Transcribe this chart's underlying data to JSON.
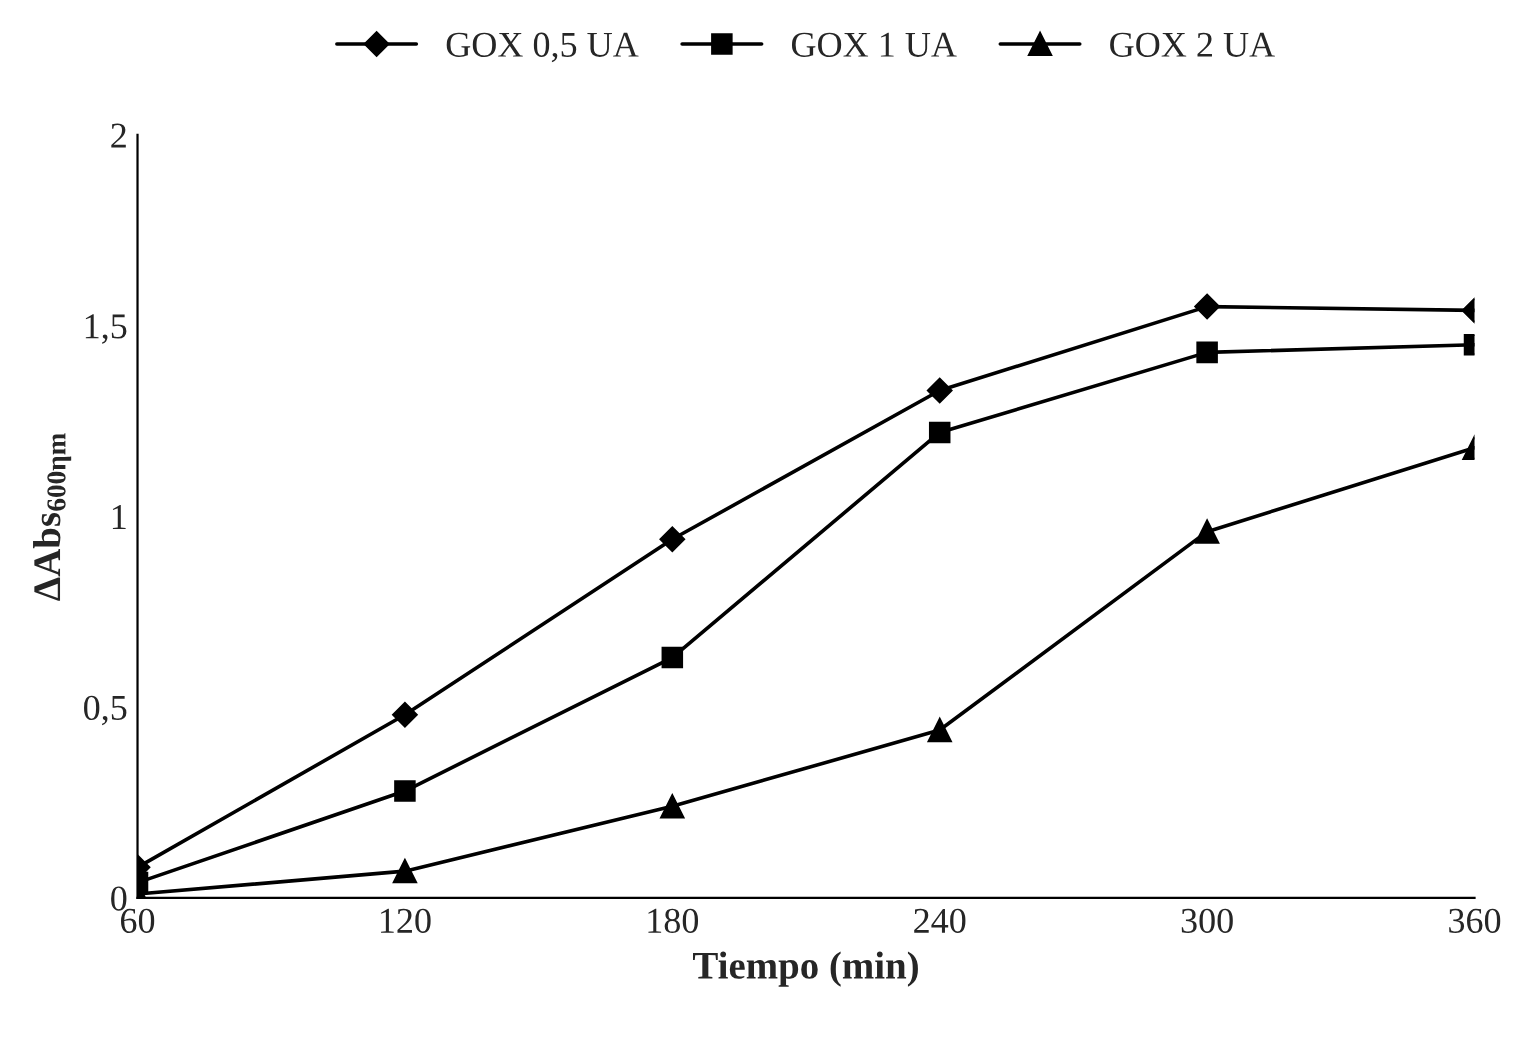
{
  "chart_data": {
    "type": "line",
    "xlabel": "Tiempo (min)",
    "ylabel": "ΔAbs$_{600ηm}$",
    "x": [
      60,
      120,
      180,
      240,
      300,
      360
    ],
    "series": [
      {
        "name": "GOX 0,5 UA",
        "color": "#000000",
        "marker": "diamond",
        "values": [
          0.08,
          0.48,
          0.94,
          1.33,
          1.55,
          1.54
        ]
      },
      {
        "name": "GOX 1 UA",
        "color": "#000000",
        "marker": "square",
        "values": [
          0.04,
          0.28,
          0.63,
          1.22,
          1.43,
          1.45
        ]
      },
      {
        "name": "GOX 2 UA",
        "color": "#000000",
        "marker": "triangle",
        "values": [
          0.01,
          0.07,
          0.24,
          0.44,
          0.96,
          1.18
        ]
      }
    ],
    "xlim": [
      60,
      360
    ],
    "xticks": [
      60,
      120,
      180,
      240,
      300,
      360
    ],
    "ylim": [
      0,
      2
    ],
    "yticks": [
      0,
      {
        "value": 0.5,
        "label": "0,5"
      },
      1,
      {
        "value": 1.5,
        "label": "1,5"
      },
      2
    ],
    "grid": false,
    "legend": "top",
    "line_style": "solid"
  }
}
